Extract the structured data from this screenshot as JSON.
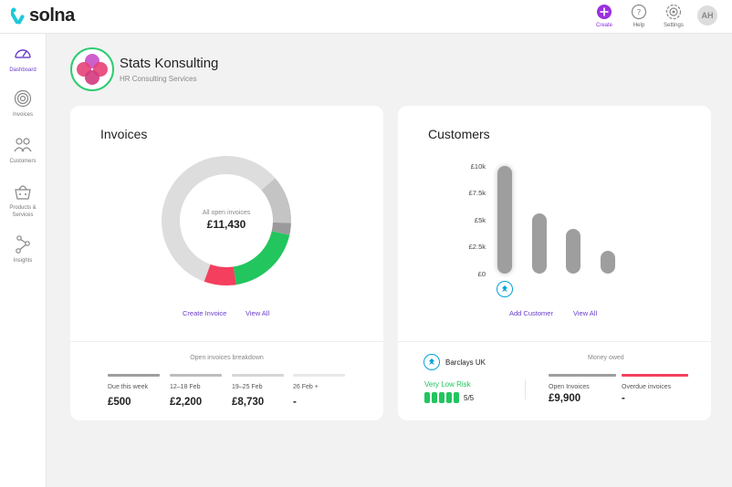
{
  "app": {
    "logo_text": "solna"
  },
  "topbar": {
    "actions": [
      {
        "label": "Create",
        "icon": "plus-circle-icon"
      },
      {
        "label": "Help",
        "icon": "help-icon"
      },
      {
        "label": "Settings",
        "icon": "settings-icon"
      }
    ],
    "avatar_initials": "AH"
  },
  "sidebar": {
    "items": [
      {
        "label": "Dashboard",
        "icon": "gauge-icon",
        "active": true
      },
      {
        "label": "Invoices",
        "icon": "target-icon",
        "active": false
      },
      {
        "label": "Customers",
        "icon": "people-icon",
        "active": false
      },
      {
        "label": "Products & Services",
        "icon": "basket-icon",
        "active": false
      },
      {
        "label": "Insights",
        "icon": "nodes-icon",
        "active": false
      }
    ]
  },
  "company": {
    "name": "Stats Konsulting",
    "subtitle": "HR Consulting Services"
  },
  "invoices": {
    "title": "Invoices",
    "center_label": "All open invoices",
    "center_value": "£11,430",
    "create_link": "Create Invoice",
    "view_all_link": "View All",
    "breakdown_title": "Open invoices breakdown",
    "breakdown": [
      {
        "label": "Due this week",
        "value": "£500",
        "color": "#9e9e9e"
      },
      {
        "label": "12–18 Feb",
        "value": "£2,200",
        "color": "#bdbdbd"
      },
      {
        "label": "19–25 Feb",
        "value": "£8,730",
        "color": "#d6d6d6"
      },
      {
        "label": "26 Feb +",
        "value": "-",
        "color": "#e8e8e8"
      }
    ],
    "donut_segments": [
      {
        "share": 0.58,
        "color": "#dddddd"
      },
      {
        "share": 0.12,
        "color": "#c4c4c4"
      },
      {
        "share": 0.03,
        "color": "#9a9a9a"
      },
      {
        "share": 0.19,
        "color": "#22c55e"
      },
      {
        "share": 0.08,
        "color": "#f43f5e"
      }
    ]
  },
  "customers": {
    "title": "Customers",
    "y_ticks": [
      "£10k",
      "£7.5k",
      "£5k",
      "£2.5k",
      "£0"
    ],
    "add_link": "Add Customer",
    "view_all_link": "View All",
    "bar_values": [
      10000,
      5600,
      4150,
      2100
    ],
    "y_max": 10000,
    "bank_name": "Barclays UK",
    "risk_label": "Very Low Risk",
    "risk_score": "5/5",
    "risk_level": 5,
    "money_owed_title": "Money owed",
    "money_owed": [
      {
        "label": "Open Invoices",
        "value": "£9,900",
        "color": "#9e9e9e"
      },
      {
        "label": "Overdue invoices",
        "value": "-",
        "color": "#f43f5e"
      }
    ]
  },
  "colors": {
    "accent": "#6a3dc9",
    "green": "#22c55e",
    "red": "#f43f5e",
    "bank_blue": "#00a3d9"
  }
}
